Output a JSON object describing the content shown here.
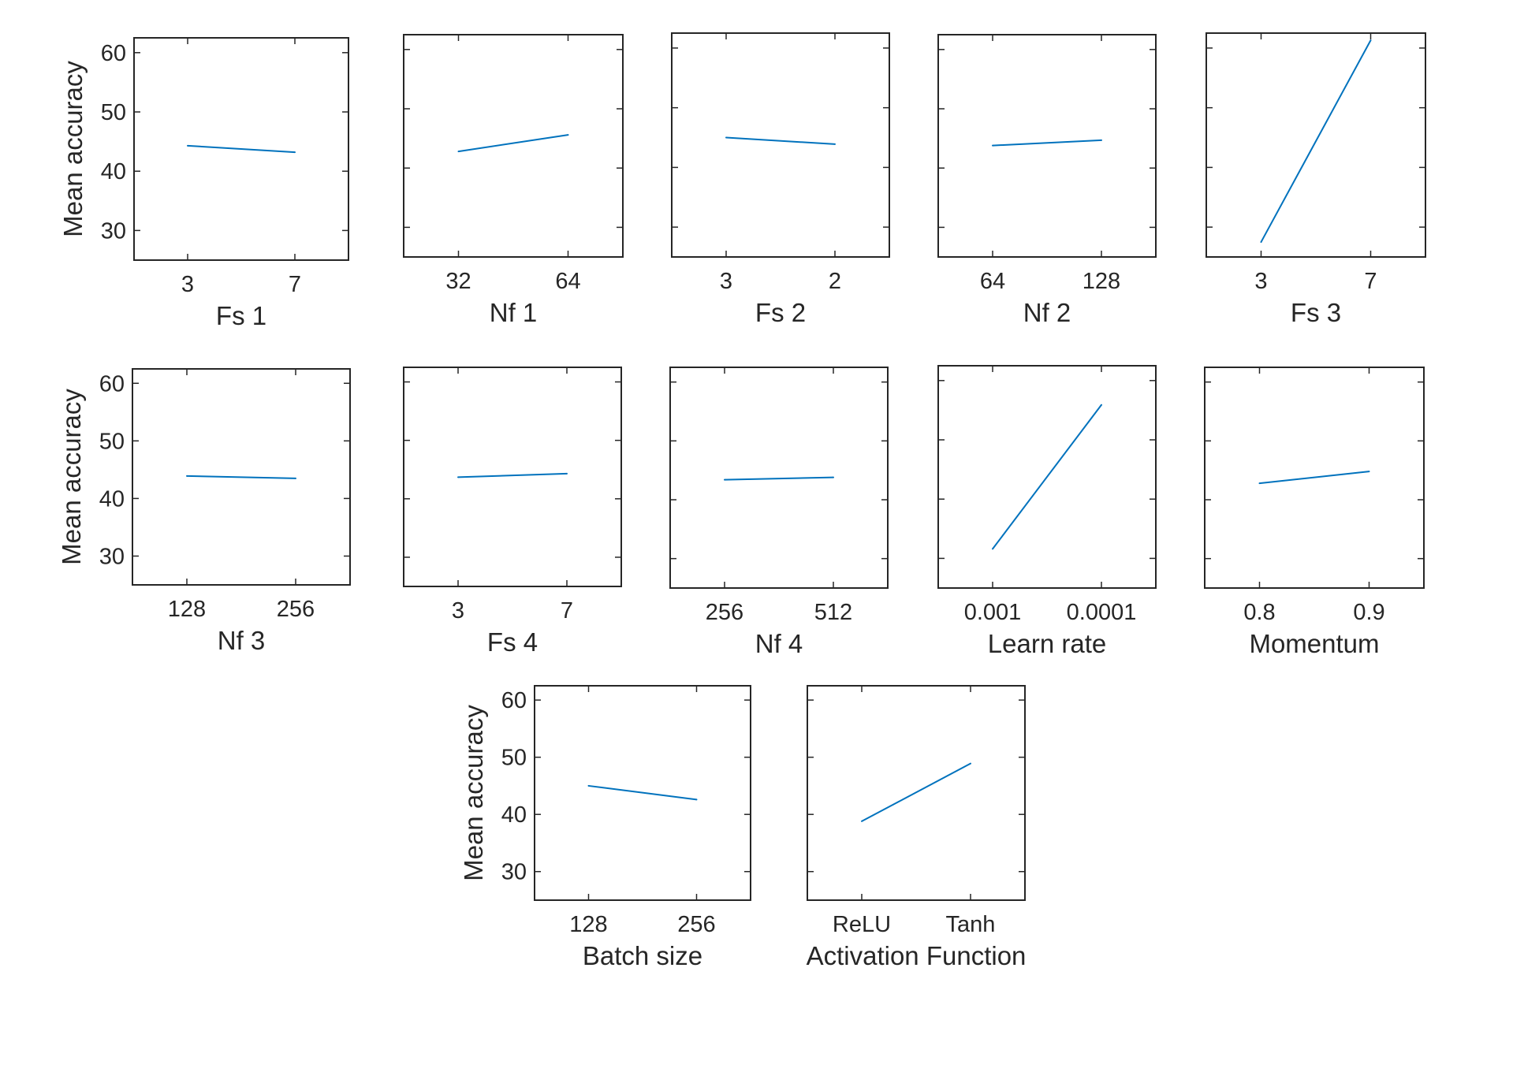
{
  "colors": {
    "line": "#0072BD",
    "axes": "#262626",
    "background": "#ffffff"
  },
  "chart_data": [
    {
      "type": "line",
      "xlabel": "Fs 1",
      "ylabel": "Mean accuracy",
      "categories": [
        "3",
        "7"
      ],
      "values": [
        44.3,
        43.2
      ],
      "yticks": [
        "30",
        "40",
        "50",
        "60"
      ],
      "ylim": [
        25,
        62.5
      ],
      "grid": false
    },
    {
      "type": "line",
      "xlabel": "Nf 1",
      "ylabel": "",
      "categories": [
        "32",
        "64"
      ],
      "values": [
        42.8,
        45.6
      ],
      "yticks": [],
      "ylim": [
        25,
        62.5
      ],
      "grid": false
    },
    {
      "type": "line",
      "xlabel": "Fs 2",
      "ylabel": "",
      "categories": [
        "3",
        "2"
      ],
      "values": [
        45.0,
        43.9
      ],
      "yticks": [],
      "ylim": [
        25,
        62.5
      ],
      "grid": false
    },
    {
      "type": "line",
      "xlabel": "Nf 2",
      "ylabel": "",
      "categories": [
        "64",
        "128"
      ],
      "values": [
        43.8,
        44.7
      ],
      "yticks": [],
      "ylim": [
        25,
        62.5
      ],
      "grid": false
    },
    {
      "type": "line",
      "xlabel": "Fs 3",
      "ylabel": "",
      "categories": [
        "3",
        "7"
      ],
      "values": [
        27.5,
        61.3
      ],
      "yticks": [],
      "ylim": [
        25,
        62.5
      ],
      "grid": false
    },
    {
      "type": "line",
      "xlabel": "Nf 3",
      "ylabel": "Mean accuracy",
      "categories": [
        "128",
        "256"
      ],
      "values": [
        43.9,
        43.5
      ],
      "yticks": [
        "30",
        "40",
        "50",
        "60"
      ],
      "ylim": [
        25,
        62.5
      ],
      "grid": false
    },
    {
      "type": "line",
      "xlabel": "Fs 4",
      "ylabel": "",
      "categories": [
        "3",
        "7"
      ],
      "values": [
        43.7,
        44.3
      ],
      "yticks": [],
      "ylim": [
        25,
        62.5
      ],
      "grid": false
    },
    {
      "type": "line",
      "xlabel": "Nf 4",
      "ylabel": "",
      "categories": [
        "256",
        "512"
      ],
      "values": [
        43.4,
        43.8
      ],
      "yticks": [],
      "ylim": [
        25,
        62.5
      ],
      "grid": false
    },
    {
      "type": "line",
      "xlabel": "Learn rate",
      "ylabel": "",
      "categories": [
        "0.001",
        "0.0001"
      ],
      "values": [
        31.6,
        55.9
      ],
      "yticks": [],
      "ylim": [
        25,
        62.5
      ],
      "grid": false
    },
    {
      "type": "line",
      "xlabel": "Momentum",
      "ylabel": "",
      "categories": [
        "0.8",
        "0.9"
      ],
      "values": [
        42.8,
        44.8
      ],
      "yticks": [],
      "ylim": [
        25,
        62.5
      ],
      "grid": false
    },
    {
      "type": "line",
      "xlabel": "Batch size",
      "ylabel": "Mean accuracy",
      "categories": [
        "128",
        "256"
      ],
      "values": [
        45.0,
        42.6
      ],
      "yticks": [
        "30",
        "40",
        "50",
        "60"
      ],
      "ylim": [
        25,
        62.5
      ],
      "grid": false
    },
    {
      "type": "line",
      "xlabel": "Activation Function",
      "ylabel": "",
      "categories": [
        "ReLU",
        "Tanh"
      ],
      "values": [
        38.8,
        48.9
      ],
      "yticks": [],
      "ylim": [
        25,
        62.5
      ],
      "grid": false
    }
  ]
}
